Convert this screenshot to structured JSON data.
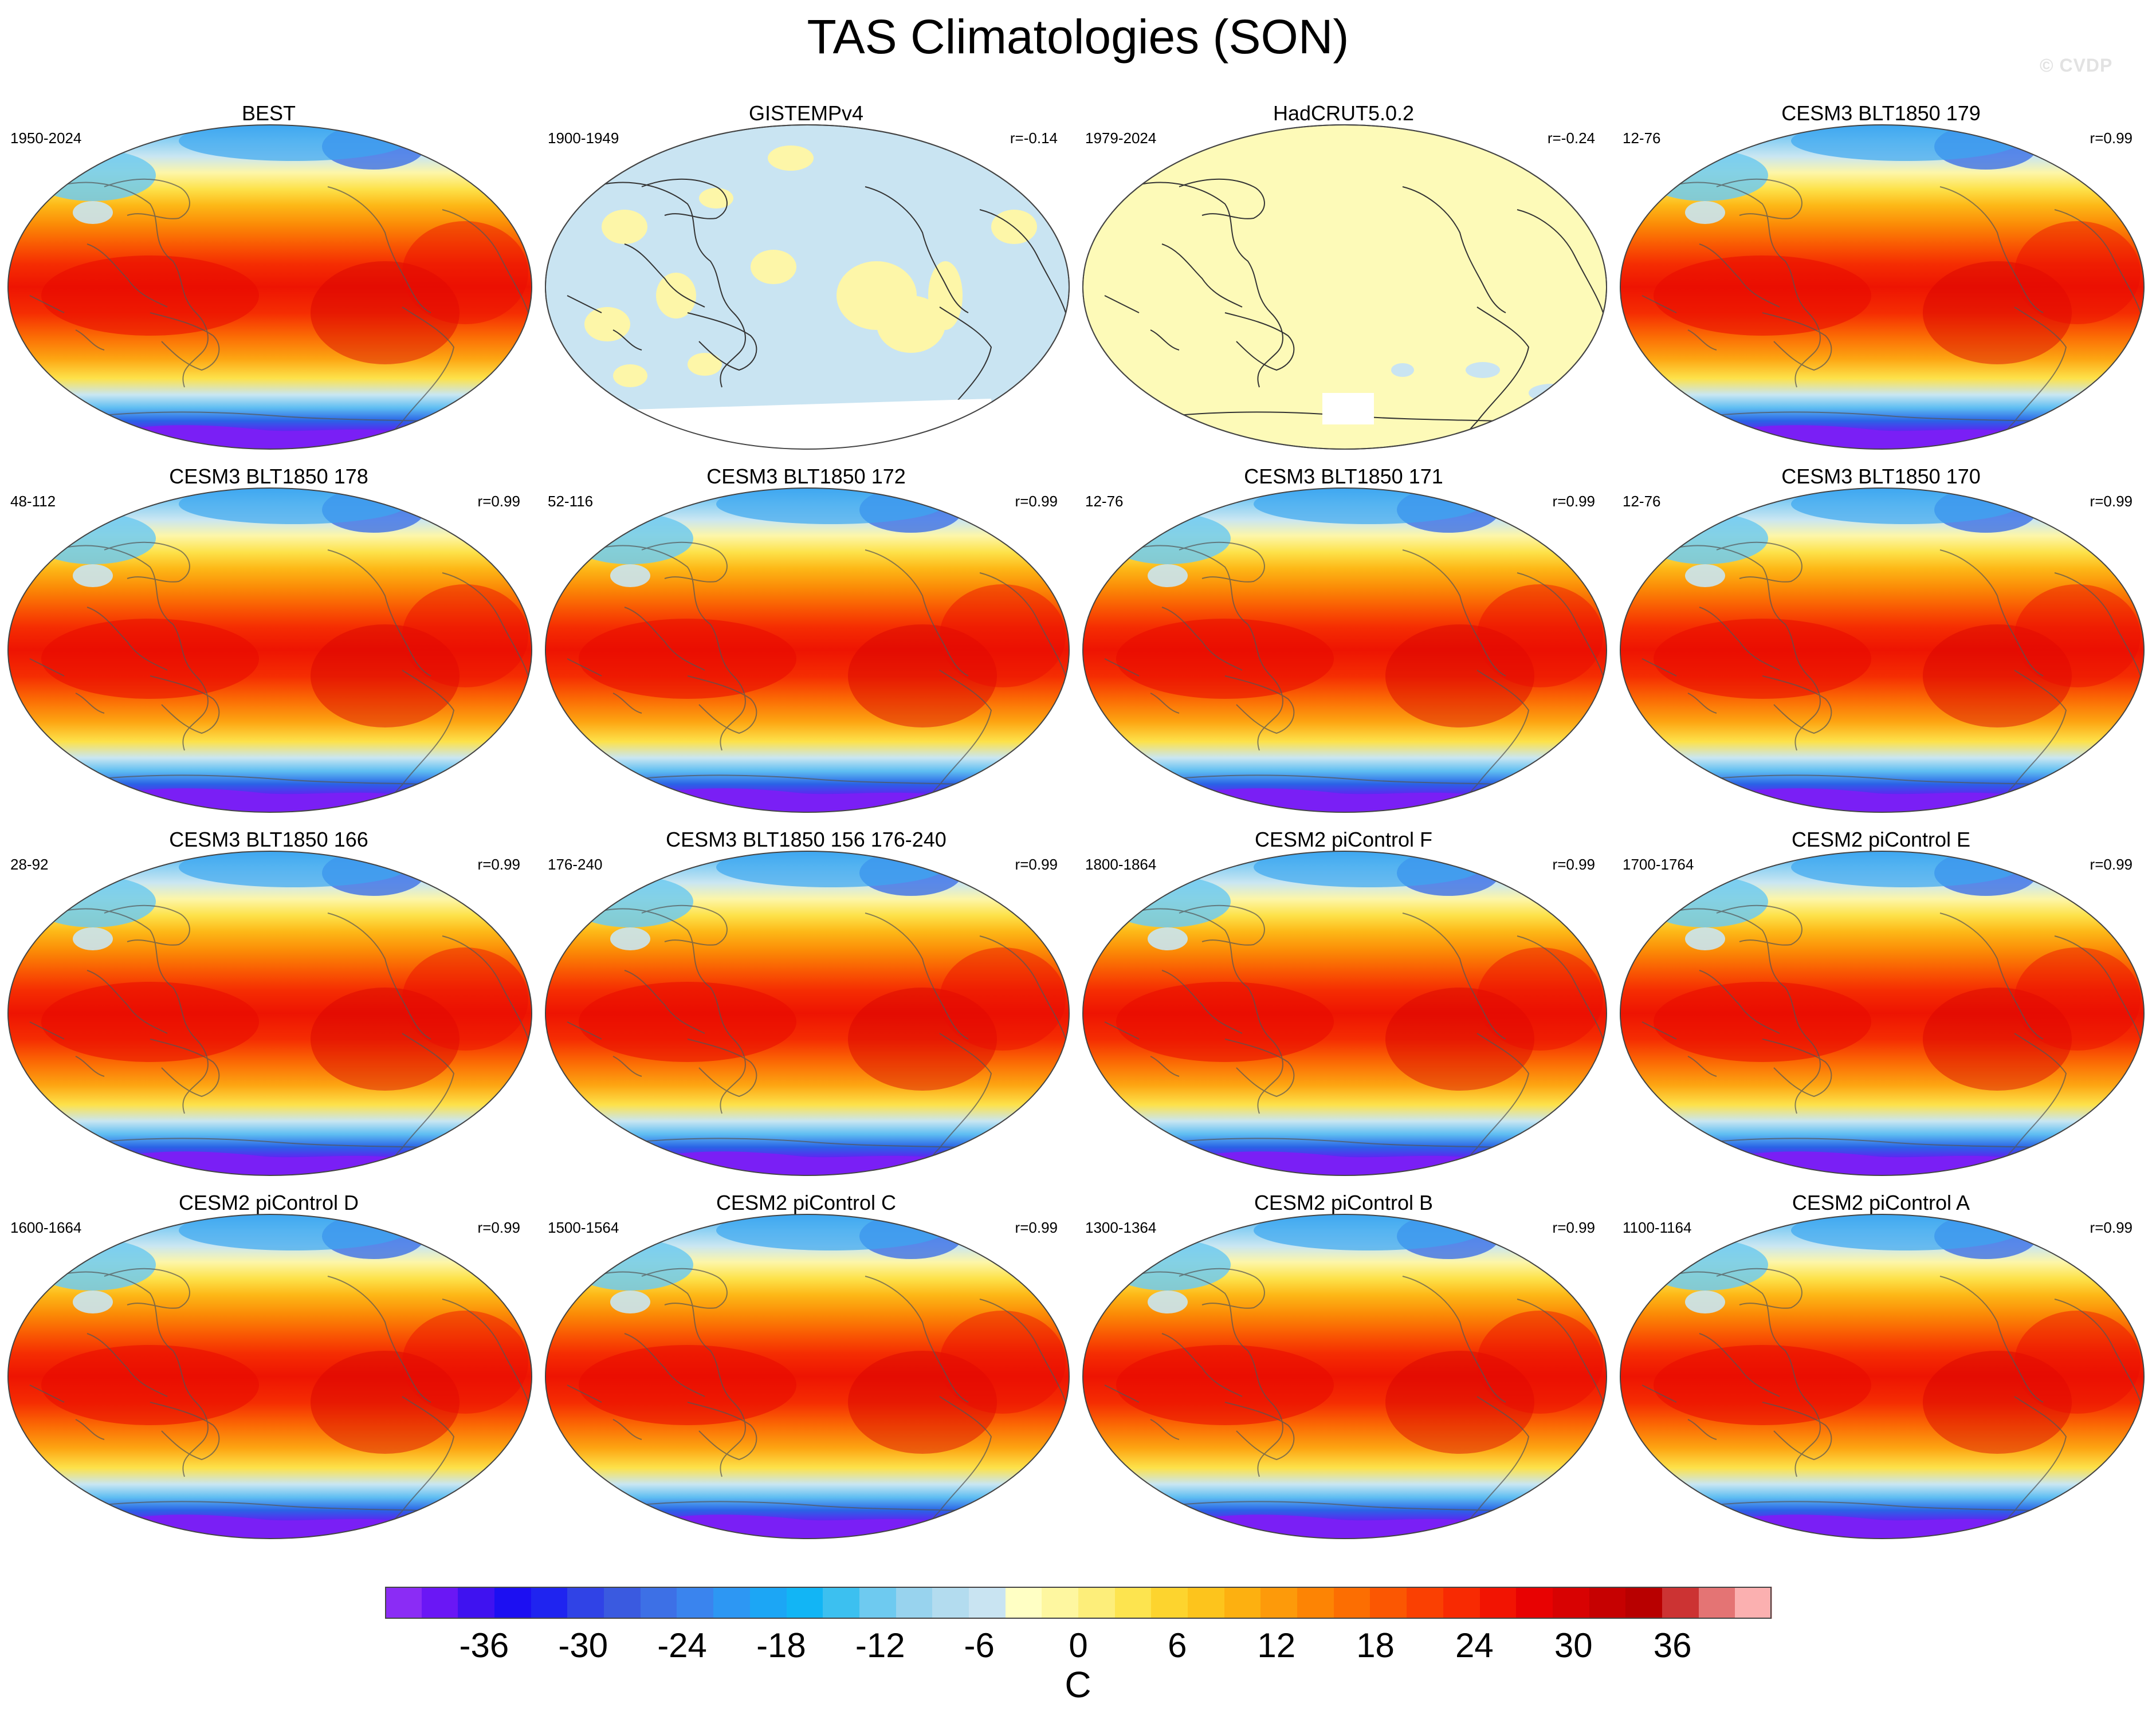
{
  "title": "TAS Climatologies (SON)",
  "watermark": "© CVDP",
  "chart_data": {
    "type": "heatmap",
    "title": "TAS Climatologies (SON)",
    "projection": "Robinson, Pacific-centered world map",
    "colorbar": {
      "units": "C",
      "tick_labels": [
        "-36",
        "-30",
        "-24",
        "-18",
        "-12",
        "-6",
        "0",
        "6",
        "12",
        "18",
        "24",
        "30",
        "36"
      ],
      "range": [
        -42,
        42
      ],
      "interval": 2,
      "colors": [
        "#8b2cf5",
        "#6a17f5",
        "#3f12f0",
        "#1c0ff2",
        "#1f24f0",
        "#3043e6",
        "#3a5ae0",
        "#3d70e6",
        "#3a84ee",
        "#2d97f3",
        "#1ca6f5",
        "#12b5f5",
        "#3cc0f0",
        "#6ecaf0",
        "#98d3ee",
        "#b3dcef",
        "#c9e4f2",
        "#ffffc4",
        "#fef7a0",
        "#fdee7a",
        "#fde44f",
        "#fdd42e",
        "#fdc41c",
        "#fdb010",
        "#fd9a0a",
        "#fd8404",
        "#fc6e02",
        "#fb5702",
        "#fa4002",
        "#f82a02",
        "#f21402",
        "#e80202",
        "#d80202",
        "#c60101",
        "#b80000",
        "#cc3333",
        "#e47474",
        "#fbb0b0"
      ]
    },
    "panels": [
      {
        "name": "BEST",
        "period": "1950-2024",
        "r": "",
        "pattern": "model"
      },
      {
        "name": "GISTEMPv4",
        "period": "1900-1949",
        "r": "r=-0.14",
        "pattern": "obs-anomaly-blue"
      },
      {
        "name": "HadCRUT5.0.2",
        "period": "1979-2024",
        "r": "r=-0.24",
        "pattern": "obs-anomaly-yellow"
      },
      {
        "name": "CESM3 BLT1850 179",
        "period": "12-76",
        "r": "r=0.99",
        "pattern": "model"
      },
      {
        "name": "CESM3 BLT1850 178",
        "period": "48-112",
        "r": "r=0.99",
        "pattern": "model"
      },
      {
        "name": "CESM3 BLT1850 172",
        "period": "52-116",
        "r": "r=0.99",
        "pattern": "model"
      },
      {
        "name": "CESM3 BLT1850 171",
        "period": "12-76",
        "r": "r=0.99",
        "pattern": "model"
      },
      {
        "name": "CESM3 BLT1850 170",
        "period": "12-76",
        "r": "r=0.99",
        "pattern": "model"
      },
      {
        "name": "CESM3 BLT1850 166",
        "period": "28-92",
        "r": "r=0.99",
        "pattern": "model"
      },
      {
        "name": "CESM3 BLT1850 156 176-240",
        "period": "176-240",
        "r": "r=0.99",
        "pattern": "model"
      },
      {
        "name": "CESM2 piControl F",
        "period": "1800-1864",
        "r": "r=0.99",
        "pattern": "model"
      },
      {
        "name": "CESM2 piControl E",
        "period": "1700-1764",
        "r": "r=0.99",
        "pattern": "model"
      },
      {
        "name": "CESM2 piControl D",
        "period": "1600-1664",
        "r": "r=0.99",
        "pattern": "model"
      },
      {
        "name": "CESM2 piControl C",
        "period": "1500-1564",
        "r": "r=0.99",
        "pattern": "model"
      },
      {
        "name": "CESM2 piControl B",
        "period": "1300-1364",
        "r": "r=0.99",
        "pattern": "model"
      },
      {
        "name": "CESM2 piControl A",
        "period": "1100-1164",
        "r": "r=0.99",
        "pattern": "model"
      }
    ]
  }
}
